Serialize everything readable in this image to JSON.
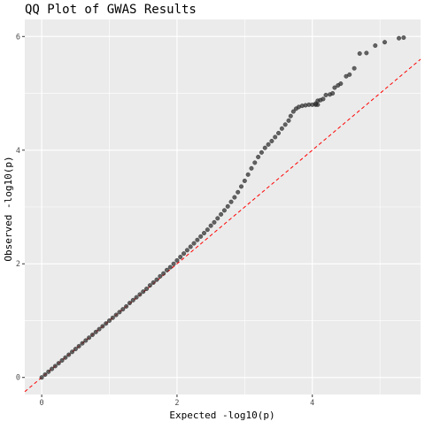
{
  "chart_data": {
    "type": "scatter",
    "title": "QQ Plot of GWAS Results",
    "xlabel": "Expected -log10(p)",
    "ylabel": "Observed -log10(p)",
    "xlim": [
      -0.25,
      5.6
    ],
    "ylim": [
      -0.3,
      6.3
    ],
    "x_ticks": [
      0,
      2,
      4
    ],
    "y_ticks": [
      0,
      2,
      4,
      6
    ],
    "x_tick_labels": [
      "0",
      "2",
      "4"
    ],
    "y_tick_labels": [
      "0",
      "2",
      "4",
      "6"
    ],
    "grid": true,
    "legend": "none",
    "reference_line": {
      "slope": 1,
      "intercept": 0,
      "style": "dashed",
      "color": "#ff0000"
    },
    "colors": {
      "panel": "#ebebeb",
      "grid": "#ffffff",
      "points": "#333333"
    },
    "series": [
      {
        "values": [
          [
            0.0,
            0.0
          ],
          [
            0.05,
            0.05
          ],
          [
            0.1,
            0.1
          ],
          [
            0.15,
            0.15
          ],
          [
            0.2,
            0.2
          ],
          [
            0.25,
            0.25
          ],
          [
            0.3,
            0.3
          ],
          [
            0.35,
            0.35
          ],
          [
            0.4,
            0.4
          ],
          [
            0.45,
            0.45
          ],
          [
            0.5,
            0.5
          ],
          [
            0.55,
            0.55
          ],
          [
            0.6,
            0.6
          ],
          [
            0.65,
            0.65
          ],
          [
            0.7,
            0.7
          ],
          [
            0.75,
            0.75
          ],
          [
            0.8,
            0.8
          ],
          [
            0.85,
            0.85
          ],
          [
            0.9,
            0.9
          ],
          [
            0.95,
            0.95
          ],
          [
            1.0,
            1.0
          ],
          [
            1.05,
            1.05
          ],
          [
            1.1,
            1.1
          ],
          [
            1.15,
            1.15
          ],
          [
            1.2,
            1.2
          ],
          [
            1.25,
            1.25
          ],
          [
            1.3,
            1.31
          ],
          [
            1.35,
            1.36
          ],
          [
            1.4,
            1.41
          ],
          [
            1.45,
            1.46
          ],
          [
            1.5,
            1.51
          ],
          [
            1.55,
            1.56
          ],
          [
            1.6,
            1.62
          ],
          [
            1.65,
            1.67
          ],
          [
            1.7,
            1.72
          ],
          [
            1.75,
            1.78
          ],
          [
            1.8,
            1.83
          ],
          [
            1.85,
            1.89
          ],
          [
            1.9,
            1.94
          ],
          [
            1.95,
            2.0
          ],
          [
            2.0,
            2.06
          ],
          [
            2.05,
            2.12
          ],
          [
            2.1,
            2.18
          ],
          [
            2.15,
            2.24
          ],
          [
            2.2,
            2.3
          ],
          [
            2.25,
            2.36
          ],
          [
            2.3,
            2.42
          ],
          [
            2.35,
            2.48
          ],
          [
            2.4,
            2.54
          ],
          [
            2.45,
            2.6
          ],
          [
            2.5,
            2.67
          ],
          [
            2.55,
            2.73
          ],
          [
            2.6,
            2.8
          ],
          [
            2.65,
            2.87
          ],
          [
            2.7,
            2.94
          ],
          [
            2.75,
            3.01
          ],
          [
            2.8,
            3.09
          ],
          [
            2.85,
            3.17
          ],
          [
            2.9,
            3.26
          ],
          [
            2.95,
            3.36
          ],
          [
            3.0,
            3.46
          ],
          [
            3.05,
            3.57
          ],
          [
            3.1,
            3.68
          ],
          [
            3.15,
            3.78
          ],
          [
            3.2,
            3.88
          ],
          [
            3.25,
            3.96
          ],
          [
            3.3,
            4.04
          ],
          [
            3.35,
            4.1
          ],
          [
            3.4,
            4.16
          ],
          [
            3.45,
            4.23
          ],
          [
            3.5,
            4.3
          ],
          [
            3.55,
            4.38
          ],
          [
            3.6,
            4.45
          ],
          [
            3.65,
            4.52
          ],
          [
            3.68,
            4.6
          ],
          [
            3.72,
            4.68
          ],
          [
            3.76,
            4.73
          ],
          [
            3.8,
            4.76
          ],
          [
            3.85,
            4.78
          ],
          [
            3.9,
            4.79
          ],
          [
            3.95,
            4.8
          ],
          [
            4.0,
            4.8
          ],
          [
            4.05,
            4.8
          ],
          [
            4.08,
            4.8
          ],
          [
            4.05,
            4.82
          ],
          [
            4.08,
            4.87
          ],
          [
            4.12,
            4.88
          ],
          [
            4.16,
            4.9
          ],
          [
            4.2,
            4.97
          ],
          [
            4.26,
            4.98
          ],
          [
            4.3,
            5.0
          ],
          [
            4.33,
            5.1
          ],
          [
            4.38,
            5.14
          ],
          [
            4.42,
            5.17
          ],
          [
            4.5,
            5.3
          ],
          [
            4.55,
            5.33
          ],
          [
            4.62,
            5.44
          ],
          [
            4.7,
            5.7
          ],
          [
            4.8,
            5.71
          ],
          [
            4.93,
            5.84
          ],
          [
            5.07,
            5.9
          ],
          [
            5.28,
            5.97
          ],
          [
            5.35,
            5.98
          ]
        ]
      }
    ]
  }
}
